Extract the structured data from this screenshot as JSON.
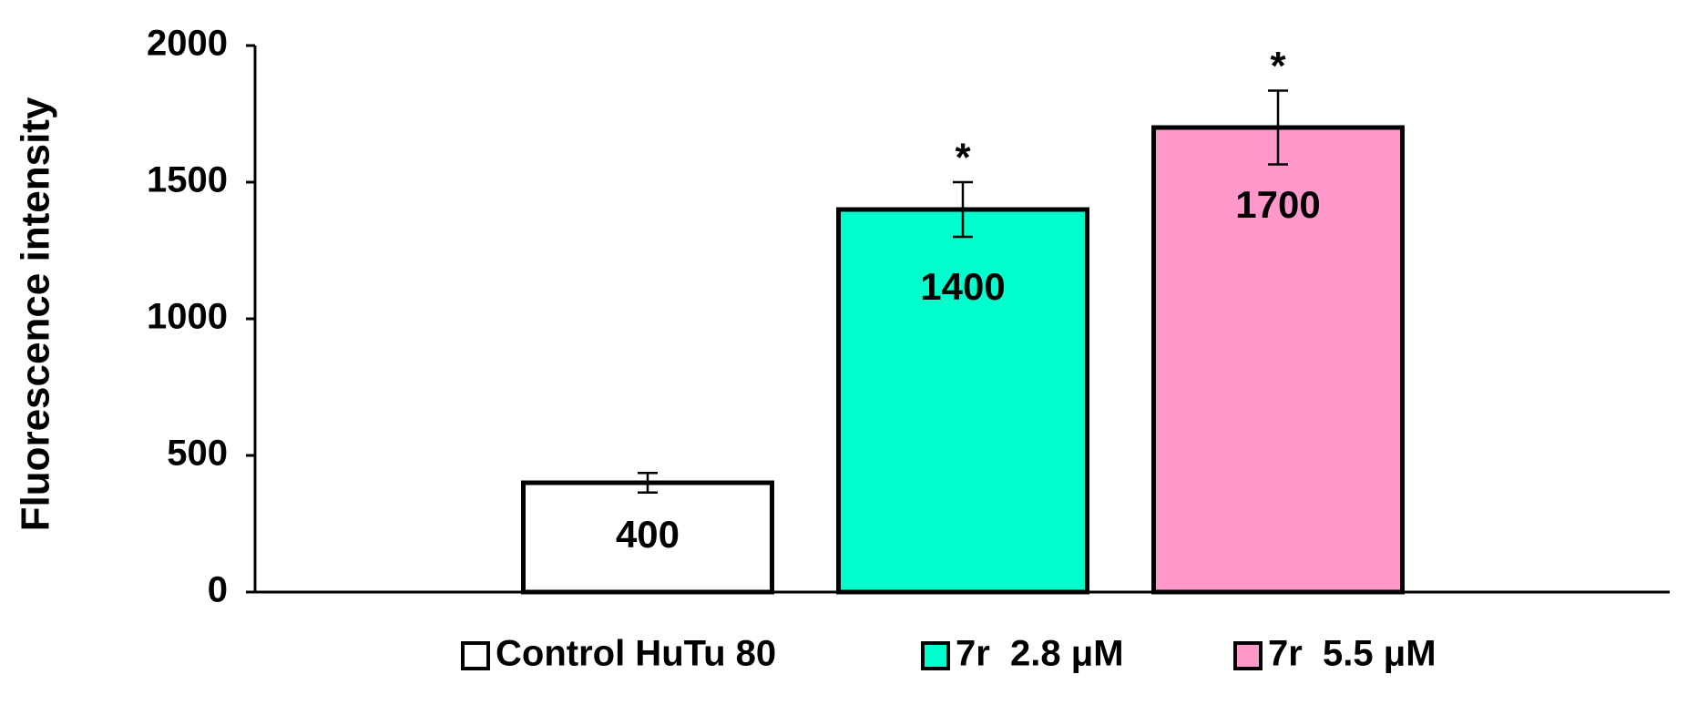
{
  "chart_data": {
    "type": "bar",
    "y_label": "Fluorescence intensity",
    "ylim": [
      0,
      2000
    ],
    "yticks": [
      0,
      500,
      1000,
      1500,
      2000
    ],
    "series": [
      {
        "name": "Control HuTu 80",
        "color": "#ffffff",
        "values": [
          400
        ],
        "errors": [
          36
        ]
      },
      {
        "name": "7r  2.8 μM",
        "color": "#00ffcc",
        "values": [
          1400
        ],
        "errors": [
          100
        ],
        "annotation": "*"
      },
      {
        "name": "7r  5.5 μM",
        "color": "#ff99cc",
        "values": [
          1700
        ],
        "errors": [
          135
        ],
        "annotation": "*"
      }
    ]
  }
}
